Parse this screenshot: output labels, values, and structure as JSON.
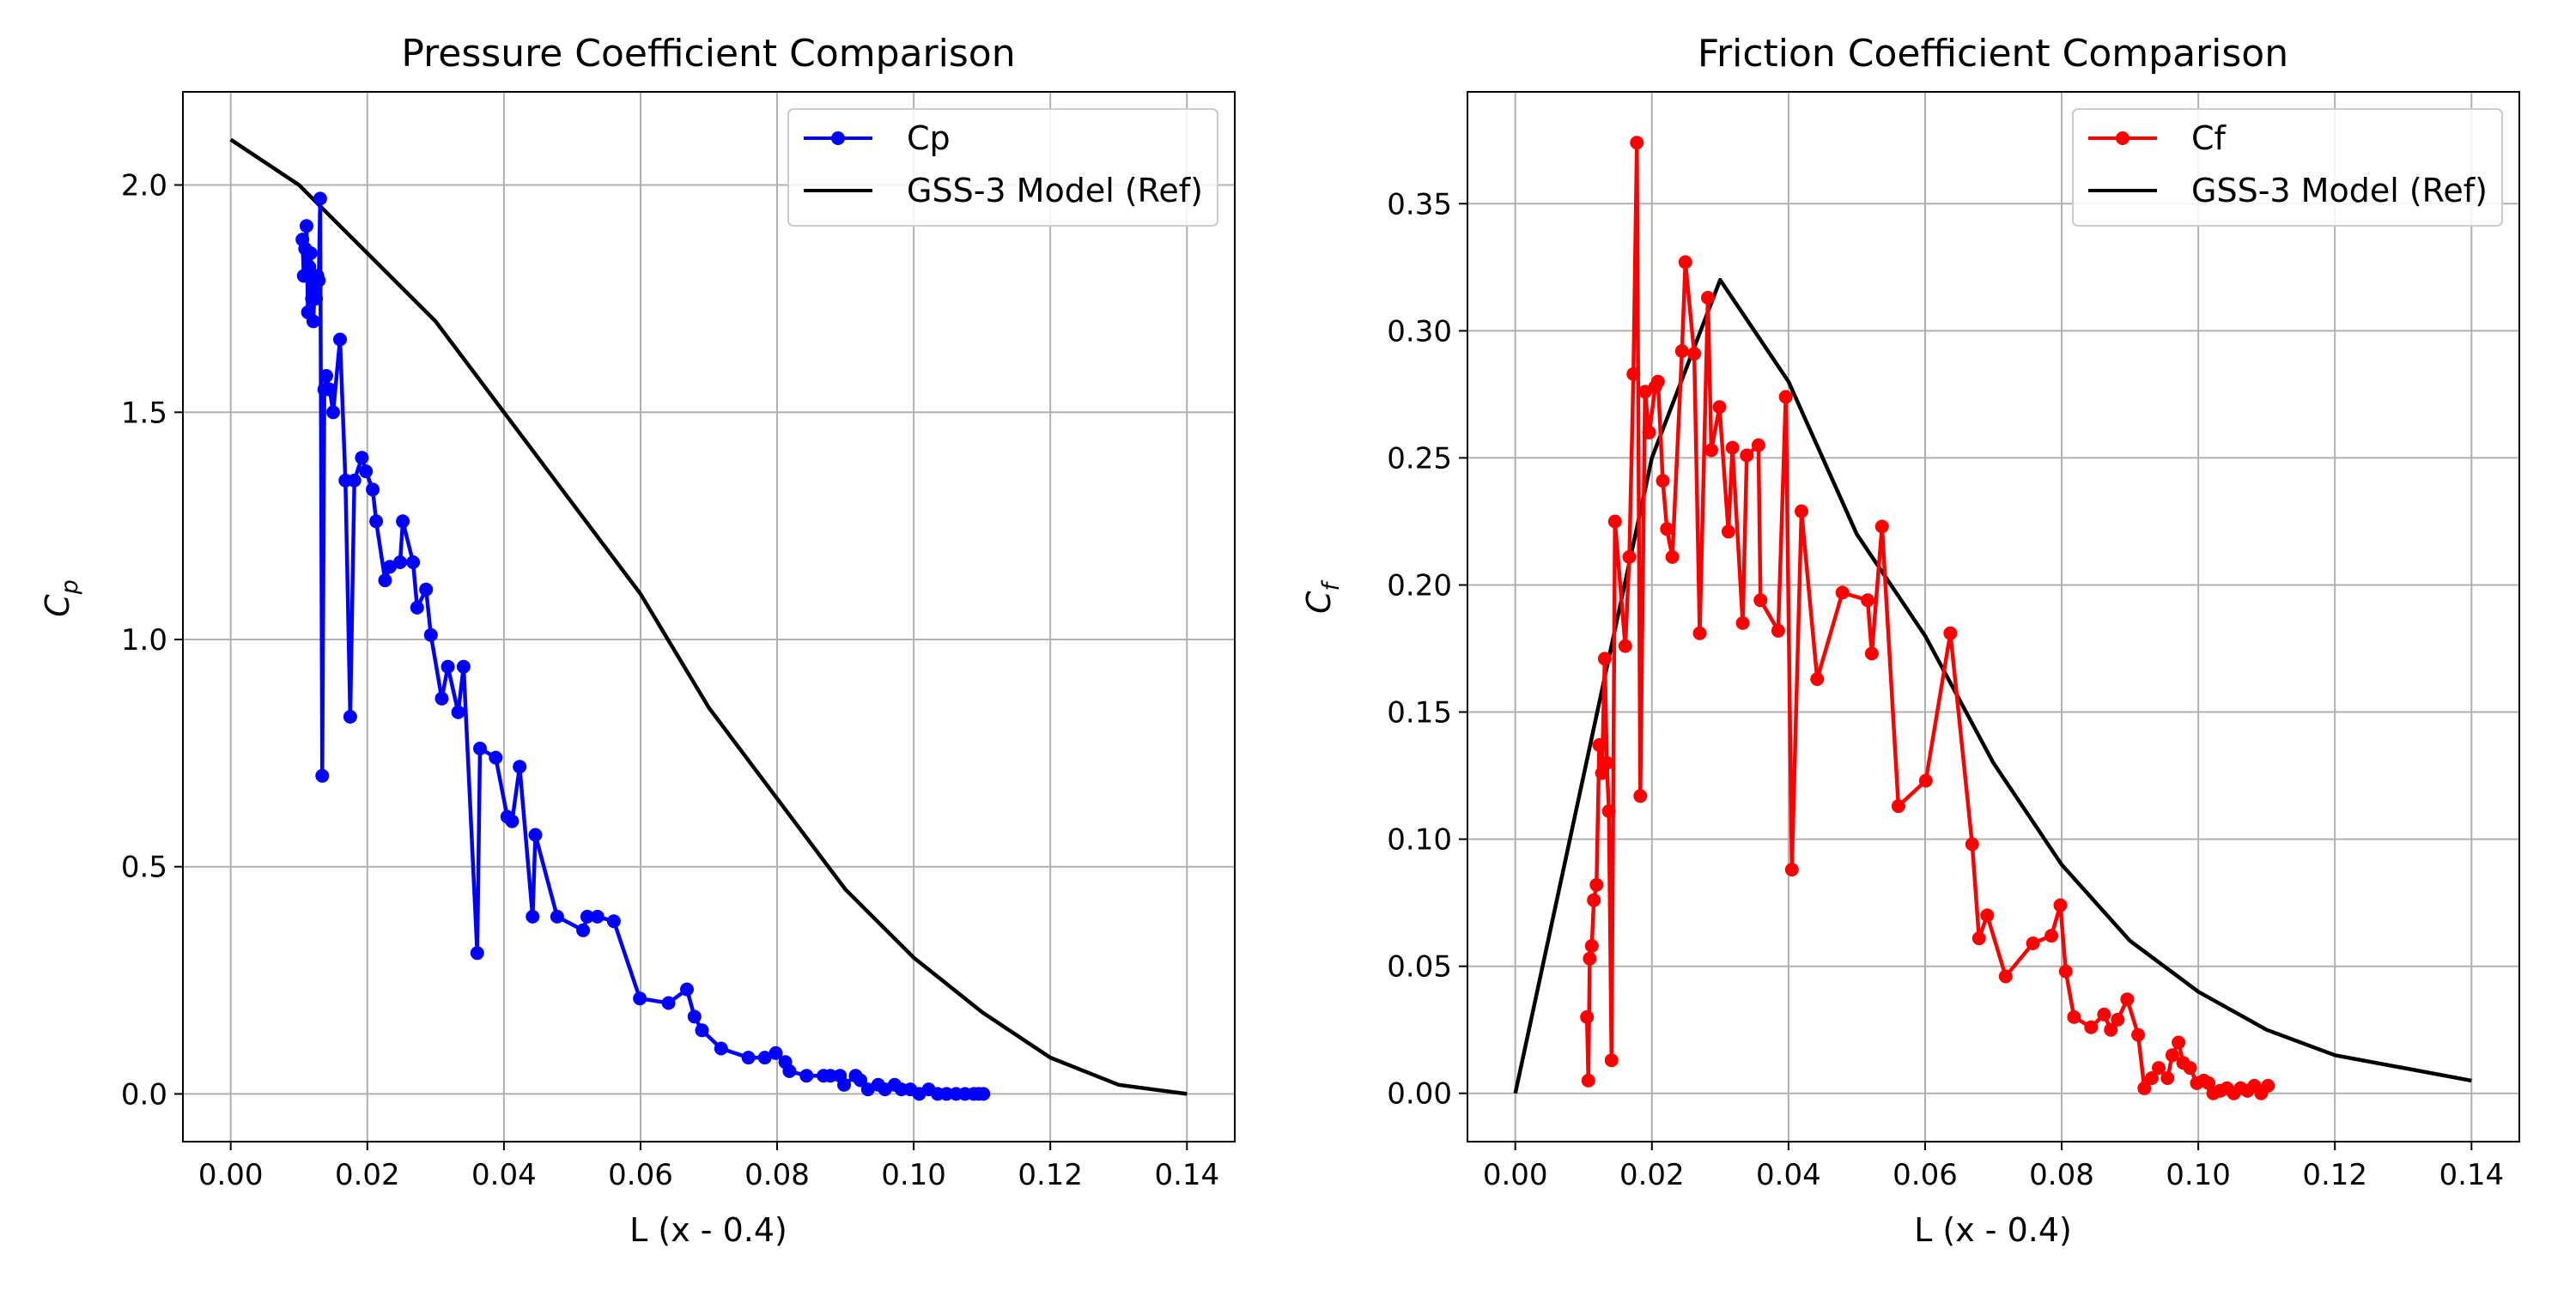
{
  "chart_data": [
    {
      "type": "line",
      "title": "Pressure Coefficient Comparison",
      "xlabel": "L (x - 0.4)",
      "ylabel_base": "C",
      "ylabel_sub": "p",
      "xlim": [
        -0.007,
        0.147
      ],
      "ylim": [
        -0.105,
        2.205
      ],
      "xticks": [
        0.0,
        0.02,
        0.04,
        0.06,
        0.08,
        0.1,
        0.12,
        0.14
      ],
      "xtick_labels": [
        "0.00",
        "0.02",
        "0.04",
        "0.06",
        "0.08",
        "0.10",
        "0.12",
        "0.14"
      ],
      "yticks": [
        0.0,
        0.5,
        1.0,
        1.5,
        2.0
      ],
      "ytick_labels": [
        "0.0",
        "0.5",
        "1.0",
        "1.5",
        "2.0"
      ],
      "grid": true,
      "legend_position": "upper right",
      "series": [
        {
          "name": "Cp",
          "color": "#0000ff",
          "marker": "circle",
          "x": [
            0.0105,
            0.0107,
            0.0109,
            0.0111,
            0.0113,
            0.0115,
            0.0117,
            0.0119,
            0.0121,
            0.0123,
            0.0125,
            0.0127,
            0.0129,
            0.0131,
            0.0134,
            0.0137,
            0.014,
            0.0145,
            0.015,
            0.016,
            0.0168,
            0.0175,
            0.0181,
            0.0192,
            0.0198,
            0.0208,
            0.0213,
            0.0226,
            0.0233,
            0.0248,
            0.0252,
            0.0267,
            0.0273,
            0.0286,
            0.0293,
            0.0309,
            0.0318,
            0.0333,
            0.0341,
            0.0361,
            0.0365,
            0.0388,
            0.0405,
            0.0412,
            0.0423,
            0.0442,
            0.0446,
            0.0478,
            0.0516,
            0.0522,
            0.0537,
            0.0561,
            0.0599,
            0.0641,
            0.0668,
            0.0679,
            0.069,
            0.0718,
            0.0758,
            0.0782,
            0.0798,
            0.0812,
            0.0818,
            0.0843,
            0.0868,
            0.0878,
            0.0892,
            0.0898,
            0.0915,
            0.0922,
            0.0933,
            0.0948,
            0.0958,
            0.0972,
            0.0982,
            0.0995,
            0.1008,
            0.1022,
            0.1035,
            0.1048,
            0.1062,
            0.1075,
            0.1088,
            0.1095,
            0.1102
          ],
          "y": [
            1.88,
            1.8,
            1.86,
            1.91,
            1.72,
            1.82,
            1.85,
            1.75,
            1.7,
            1.78,
            1.75,
            1.8,
            1.79,
            1.97,
            0.7,
            1.55,
            1.58,
            1.55,
            1.5,
            1.66,
            1.35,
            0.83,
            1.35,
            1.4,
            1.37,
            1.33,
            1.26,
            1.13,
            1.16,
            1.17,
            1.26,
            1.17,
            1.07,
            1.11,
            1.01,
            0.87,
            0.94,
            0.84,
            0.94,
            0.31,
            0.76,
            0.74,
            0.61,
            0.6,
            0.72,
            0.39,
            0.57,
            0.39,
            0.36,
            0.39,
            0.39,
            0.38,
            0.21,
            0.2,
            0.23,
            0.17,
            0.14,
            0.1,
            0.08,
            0.08,
            0.09,
            0.07,
            0.05,
            0.04,
            0.04,
            0.04,
            0.04,
            0.02,
            0.04,
            0.03,
            0.01,
            0.02,
            0.01,
            0.02,
            0.01,
            0.01,
            0.0,
            0.01,
            0.0,
            0.0,
            0.0,
            0.0,
            0.0,
            0.0,
            0.0
          ]
        },
        {
          "name": "GSS-3 Model (Ref)",
          "color": "#000000",
          "marker": "none",
          "x": [
            0.0,
            0.01,
            0.03,
            0.06,
            0.07,
            0.08,
            0.09,
            0.1,
            0.11,
            0.12,
            0.13,
            0.14
          ],
          "y": [
            2.1,
            2.0,
            1.7,
            1.1,
            0.85,
            0.65,
            0.45,
            0.3,
            0.18,
            0.08,
            0.02,
            0.0
          ]
        }
      ]
    },
    {
      "type": "line",
      "title": "Friction Coefficient Comparison",
      "xlabel": "L (x - 0.4)",
      "ylabel_base": "C",
      "ylabel_sub": "f",
      "xlim": [
        -0.007,
        0.147
      ],
      "ylim": [
        -0.019,
        0.394
      ],
      "xticks": [
        0.0,
        0.02,
        0.04,
        0.06,
        0.08,
        0.1,
        0.12,
        0.14
      ],
      "xtick_labels": [
        "0.00",
        "0.02",
        "0.04",
        "0.06",
        "0.08",
        "0.10",
        "0.12",
        "0.14"
      ],
      "yticks": [
        0.0,
        0.05,
        0.1,
        0.15,
        0.2,
        0.25,
        0.3,
        0.35
      ],
      "ytick_labels": [
        "0.00",
        "0.05",
        "0.10",
        "0.15",
        "0.20",
        "0.25",
        "0.30",
        "0.35"
      ],
      "grid": true,
      "legend_position": "upper right",
      "series": [
        {
          "name": "Cf",
          "color": "#ff0000",
          "marker": "circle",
          "x": [
            0.0105,
            0.0107,
            0.0109,
            0.0112,
            0.0115,
            0.0119,
            0.0123,
            0.0127,
            0.0131,
            0.0134,
            0.0137,
            0.0141,
            0.0146,
            0.0161,
            0.0167,
            0.0173,
            0.0178,
            0.0183,
            0.019,
            0.0196,
            0.0205,
            0.0209,
            0.0216,
            0.0222,
            0.023,
            0.0244,
            0.0249,
            0.0262,
            0.027,
            0.0282,
            0.0287,
            0.0299,
            0.0312,
            0.0318,
            0.0333,
            0.0339,
            0.0356,
            0.0359,
            0.0385,
            0.0396,
            0.0405,
            0.0419,
            0.0442,
            0.0479,
            0.0516,
            0.0522,
            0.0537,
            0.0561,
            0.0601,
            0.0637,
            0.0669,
            0.0679,
            0.0691,
            0.0718,
            0.0758,
            0.0785,
            0.0798,
            0.0806,
            0.0818,
            0.0843,
            0.0862,
            0.0872,
            0.0882,
            0.0896,
            0.0912,
            0.0921,
            0.0932,
            0.0942,
            0.0955,
            0.0962,
            0.0971,
            0.0978,
            0.0988,
            0.0998,
            0.1008,
            0.1015,
            0.1022,
            0.1032,
            0.1042,
            0.1052,
            0.1062,
            0.1072,
            0.1082,
            0.1092,
            0.1102
          ],
          "y": [
            0.03,
            0.005,
            0.053,
            0.058,
            0.076,
            0.082,
            0.137,
            0.126,
            0.171,
            0.13,
            0.111,
            0.013,
            0.225,
            0.176,
            0.211,
            0.283,
            0.374,
            0.117,
            0.276,
            0.26,
            0.278,
            0.28,
            0.241,
            0.222,
            0.211,
            0.292,
            0.327,
            0.291,
            0.181,
            0.313,
            0.253,
            0.27,
            0.221,
            0.254,
            0.185,
            0.251,
            0.255,
            0.194,
            0.182,
            0.274,
            0.088,
            0.229,
            0.163,
            0.197,
            0.194,
            0.173,
            0.223,
            0.113,
            0.123,
            0.181,
            0.098,
            0.061,
            0.07,
            0.046,
            0.059,
            0.062,
            0.074,
            0.048,
            0.03,
            0.026,
            0.031,
            0.025,
            0.029,
            0.037,
            0.023,
            0.002,
            0.006,
            0.01,
            0.006,
            0.015,
            0.02,
            0.012,
            0.01,
            0.004,
            0.005,
            0.004,
            0.0,
            0.001,
            0.002,
            0.0,
            0.002,
            0.001,
            0.003,
            0.0,
            0.003
          ]
        },
        {
          "name": "GSS-3 Model (Ref)",
          "color": "#000000",
          "marker": "none",
          "x": [
            0.0,
            0.02,
            0.03,
            0.04,
            0.05,
            0.06,
            0.07,
            0.08,
            0.09,
            0.1,
            0.11,
            0.12,
            0.14
          ],
          "y": [
            0.0,
            0.25,
            0.32,
            0.28,
            0.22,
            0.18,
            0.13,
            0.09,
            0.06,
            0.04,
            0.025,
            0.015,
            0.005
          ]
        }
      ]
    }
  ]
}
